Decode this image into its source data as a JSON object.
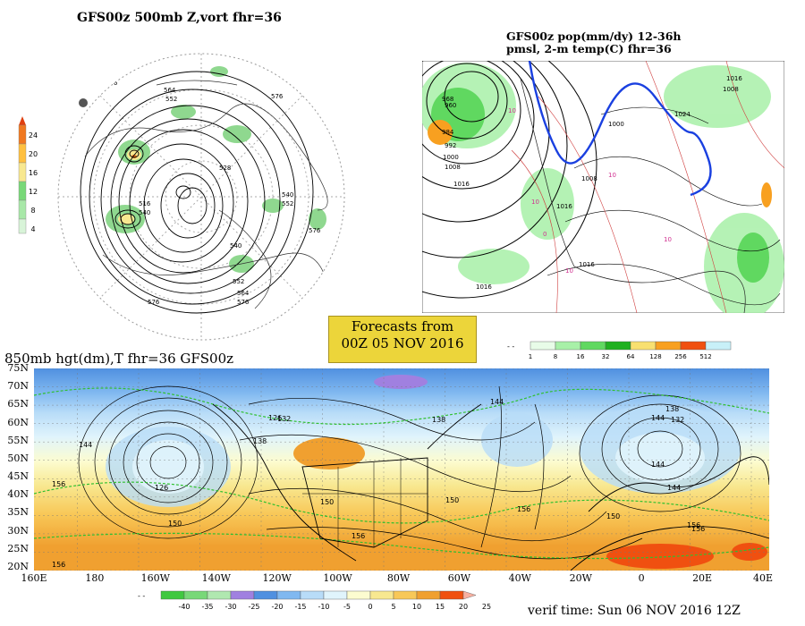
{
  "panel_500mb": {
    "title": "GFS00z  500mb Z,vort   fhr=36",
    "colorbar": {
      "labels": [
        "24",
        "20",
        "16",
        "12",
        "8",
        "4"
      ],
      "colors": [
        "#f07820",
        "#ffc040",
        "#f8e890",
        "#78d878",
        "#a8e8a8",
        "#d8f4d8"
      ]
    },
    "contour_labels": [
      "576",
      "564",
      "552",
      "576",
      "540",
      "528",
      "516",
      "540",
      "552",
      "576",
      "528",
      "540",
      "552",
      "564",
      "576"
    ]
  },
  "panel_pop": {
    "title_line1": "GFS00z pop(mm/dy) 12-36h",
    "title_line2": "pmsl, 2-m temp(C)  fhr=36",
    "isobar_labels": [
      "960",
      "968",
      "984",
      "992",
      "1000",
      "1008",
      "1016",
      "1016",
      "1000",
      "1008",
      "1016",
      "1024",
      "1016",
      "1016",
      "1008"
    ],
    "temp_labels": [
      "10",
      "10",
      "10",
      "0",
      "10",
      "10"
    ],
    "colorbar": {
      "labels": [
        "1",
        "8",
        "16",
        "32",
        "64",
        "128",
        "256",
        "512"
      ],
      "colors": [
        "#e8fce8",
        "#a8f0a8",
        "#60d860",
        "#20b020",
        "#f8e070",
        "#f8a020",
        "#f05010",
        "#c8f0f8"
      ]
    }
  },
  "banner": {
    "line1": "Forecasts from",
    "line2": "00Z 05 NOV 2016"
  },
  "panel_850mb": {
    "title": "850mb hgt(dm),T  fhr=36 GFS00z",
    "lat_labels": [
      "75N",
      "70N",
      "65N",
      "60N",
      "55N",
      "50N",
      "45N",
      "40N",
      "35N",
      "30N",
      "25N",
      "20N"
    ],
    "lon_labels": [
      "160E",
      "180",
      "160W",
      "140W",
      "120W",
      "100W",
      "80W",
      "60W",
      "40W",
      "20W",
      "0",
      "20E",
      "40E"
    ],
    "height_labels": [
      "144",
      "126",
      "156",
      "150",
      "126",
      "132",
      "138",
      "138",
      "144",
      "150",
      "150",
      "156",
      "156",
      "156",
      "144",
      "138",
      "132",
      "144",
      "144",
      "156",
      "156",
      "150"
    ],
    "colorbar": {
      "labels": [
        "-40",
        "-35",
        "-30",
        "-25",
        "-20",
        "-15",
        "-10",
        "-5",
        "0",
        "5",
        "10",
        "15",
        "20",
        "25"
      ],
      "colors": [
        "#40c840",
        "#78d878",
        "#b0e8b0",
        "#a080e0",
        "#5090e0",
        "#80b8f0",
        "#b8dcf8",
        "#e0f4fc",
        "#fcfcd0",
        "#f8e890",
        "#f8c858",
        "#f0a030",
        "#f05010"
      ]
    },
    "verif_time": "verif time: Sun 06 NOV 2016 12Z"
  }
}
